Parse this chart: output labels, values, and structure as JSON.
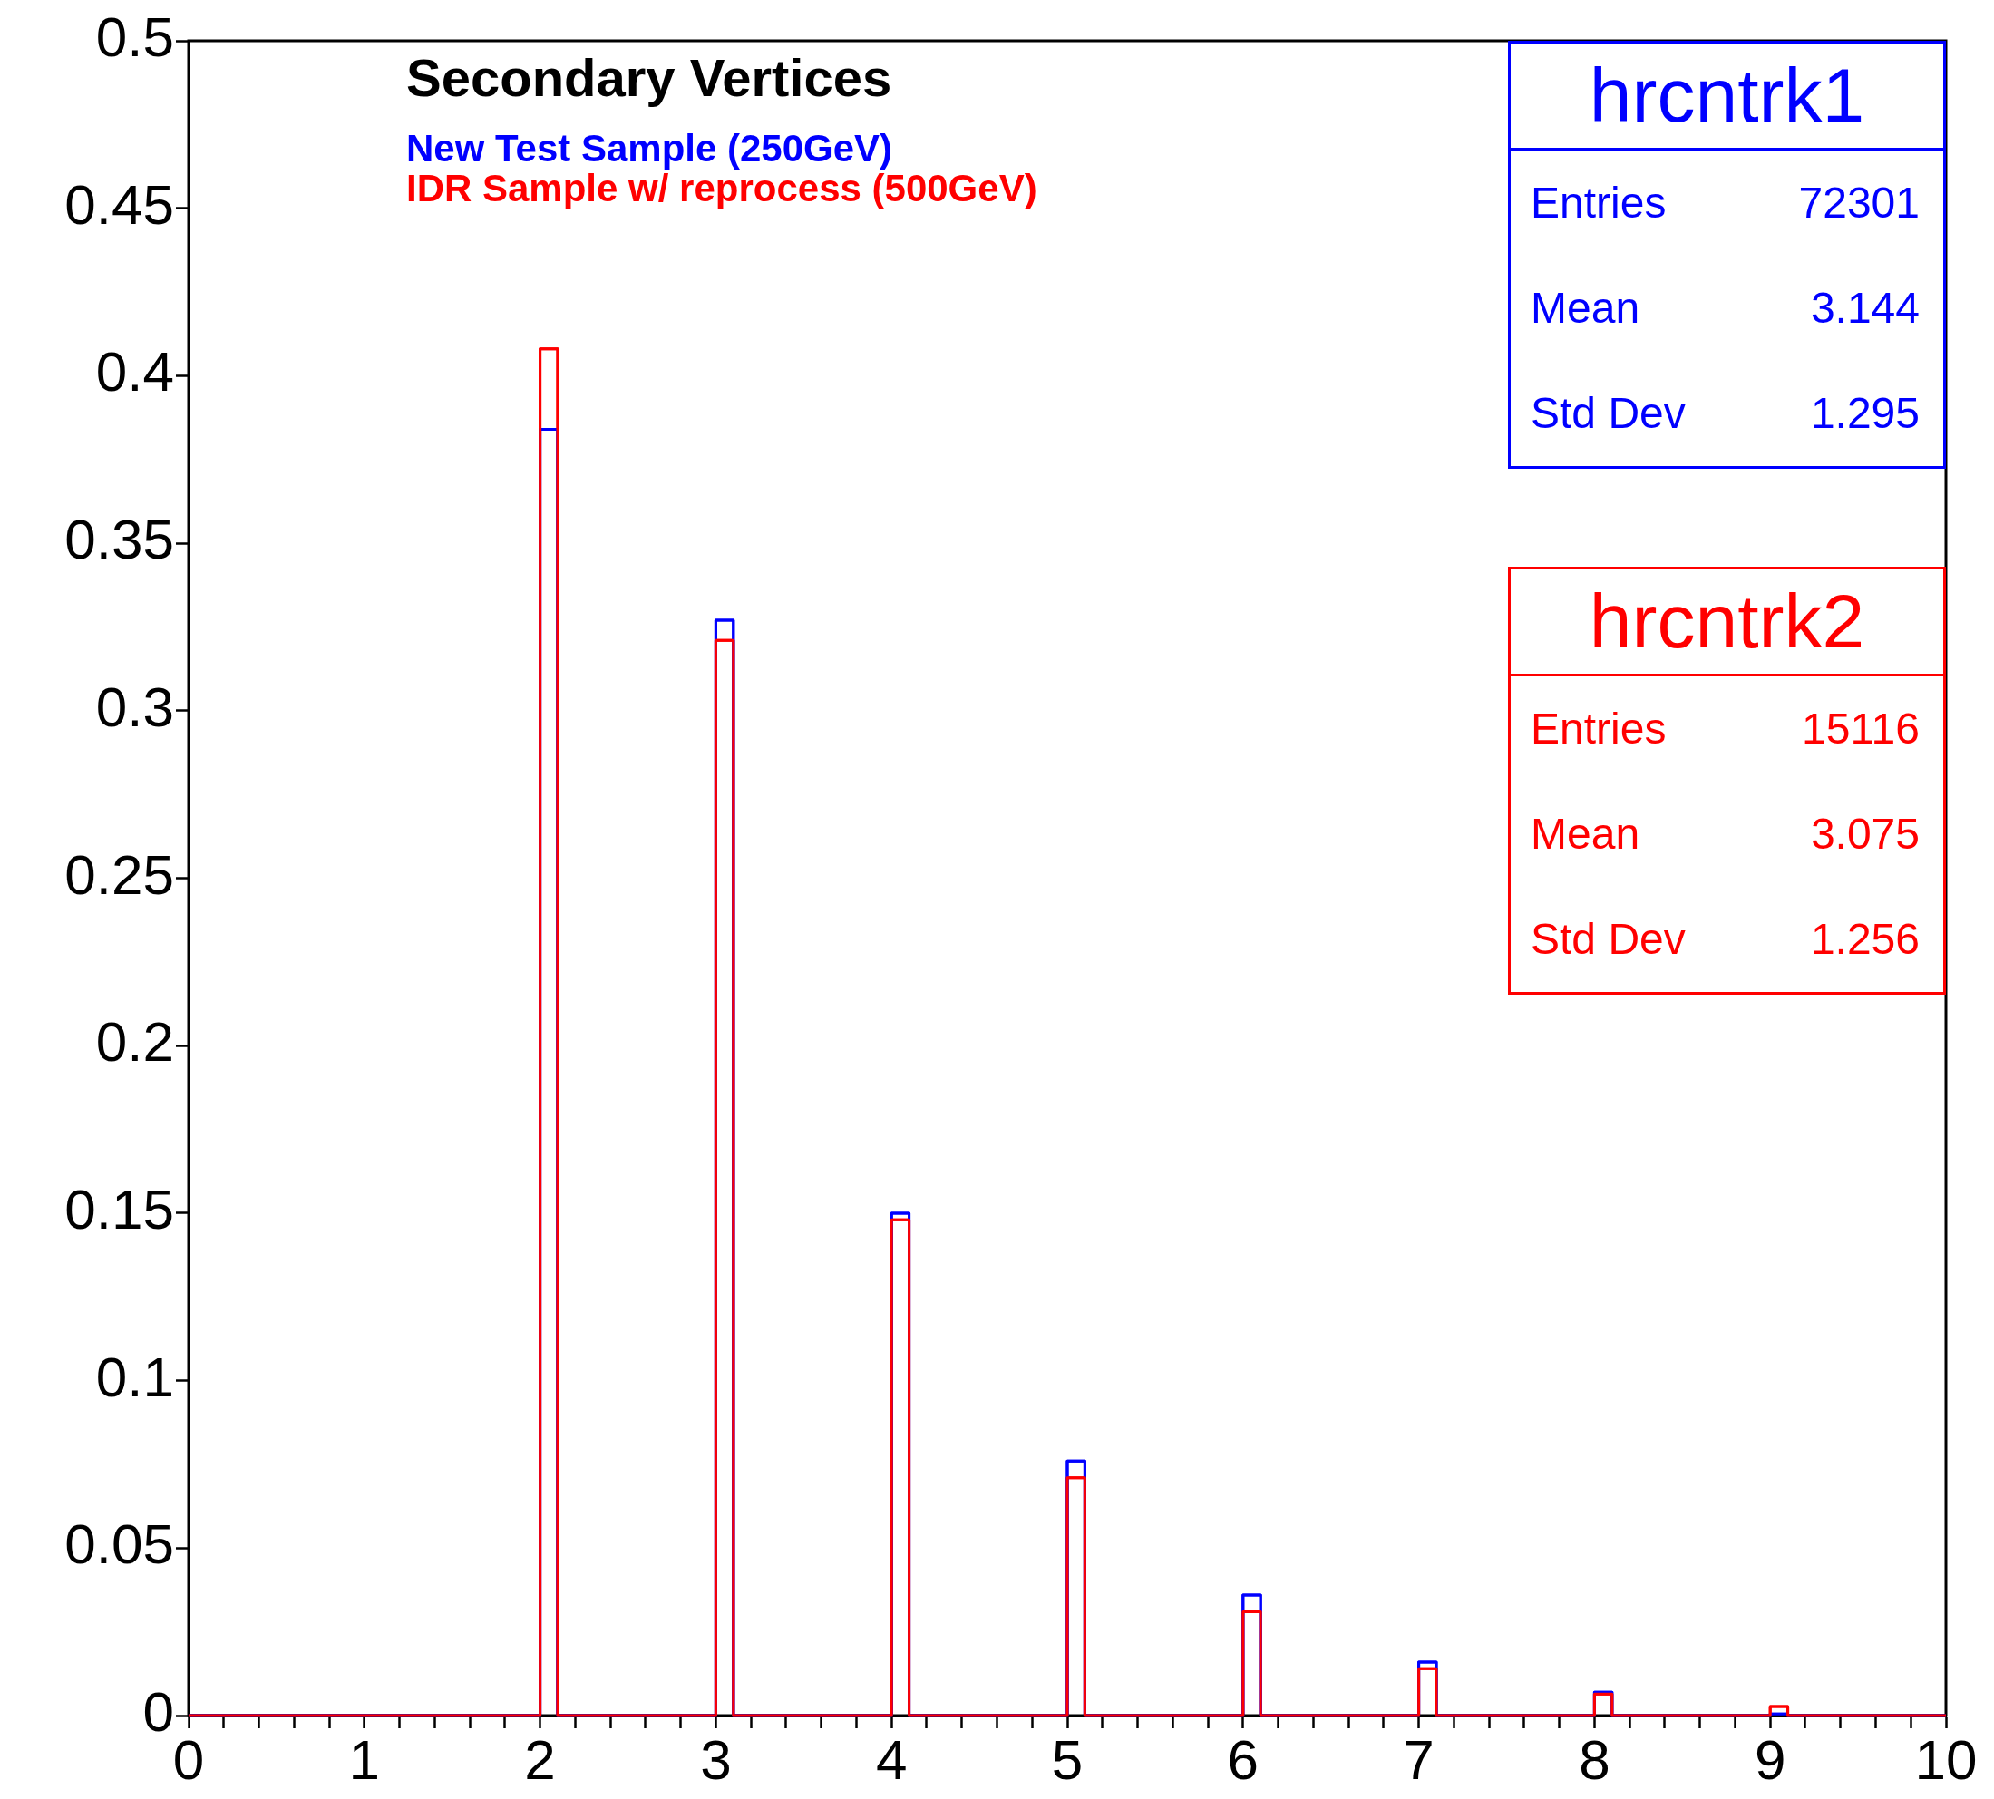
{
  "chart_data": {
    "type": "histogram",
    "title": "Secondary Vertices",
    "bins": [
      0,
      2,
      2.1,
      3,
      3.1,
      4,
      4.1,
      5,
      5.1,
      6,
      6.1,
      7,
      7.1,
      8,
      8.1,
      9,
      9.1,
      10
    ],
    "series": [
      {
        "name": "New Test Sample (250GeV)",
        "color": "#0000ff",
        "values": [
          0,
          0.384,
          0,
          0.327,
          0,
          0.15,
          0,
          0.076,
          0,
          0.036,
          0,
          0.016,
          0,
          0.007,
          0,
          0.0005,
          0
        ]
      },
      {
        "name": "IDR Sample w/ reprocess (500GeV)",
        "color": "#ff0000",
        "values": [
          0,
          0.408,
          0,
          0.321,
          0,
          0.148,
          0,
          0.071,
          0,
          0.031,
          0,
          0.014,
          0,
          0.0064,
          0,
          0.0027,
          0
        ]
      }
    ],
    "xlim": [
      0,
      10
    ],
    "xticks": [
      0,
      {
        "value": 0.2,
        "label": null
      },
      {
        "value": 0.4,
        "label": null
      },
      {
        "value": 0.6,
        "label": null
      },
      {
        "value": 0.8,
        "label": null
      },
      1,
      {
        "value": 1.2,
        "label": null
      },
      {
        "value": 1.4,
        "label": null
      },
      {
        "value": 1.6,
        "label": null
      },
      {
        "value": 1.8,
        "label": null
      },
      2,
      {
        "value": 2.2,
        "label": null
      },
      {
        "value": 2.4,
        "label": null
      },
      {
        "value": 2.6,
        "label": null
      },
      {
        "value": 2.8,
        "label": null
      },
      3,
      {
        "value": 3.2,
        "label": null
      },
      {
        "value": 3.4,
        "label": null
      },
      {
        "value": 3.6,
        "label": null
      },
      {
        "value": 3.8,
        "label": null
      },
      4,
      {
        "value": 4.2,
        "label": null
      },
      {
        "value": 4.4,
        "label": null
      },
      {
        "value": 4.6,
        "label": null
      },
      {
        "value": 4.8,
        "label": null
      },
      5,
      {
        "value": 5.2,
        "label": null
      },
      {
        "value": 5.4,
        "label": null
      },
      {
        "value": 5.6,
        "label": null
      },
      {
        "value": 5.8,
        "label": null
      },
      6,
      {
        "value": 6.2,
        "label": null
      },
      {
        "value": 6.4,
        "label": null
      },
      {
        "value": 6.6,
        "label": null
      },
      {
        "value": 6.8,
        "label": null
      },
      7,
      {
        "value": 7.2,
        "label": null
      },
      {
        "value": 7.4,
        "label": null
      },
      {
        "value": 7.6,
        "label": null
      },
      {
        "value": 7.8,
        "label": null
      },
      8,
      {
        "value": 8.2,
        "label": null
      },
      {
        "value": 8.4,
        "label": null
      },
      {
        "value": 8.6,
        "label": null
      },
      {
        "value": 8.8,
        "label": null
      },
      9,
      {
        "value": 9.2,
        "label": null
      },
      {
        "value": 9.4,
        "label": null
      },
      {
        "value": 9.6,
        "label": null
      },
      {
        "value": 9.8,
        "label": null
      },
      10
    ],
    "ylim": [
      0,
      0.5
    ],
    "yticks": [
      0,
      0.05,
      0.1,
      0.15,
      0.2,
      0.25,
      0.3,
      0.35,
      0.4,
      0.45,
      0.5
    ],
    "legend": "top left",
    "grid": false,
    "annotations": [
      "hrcntrk1",
      "Entries",
      "72301",
      "Mean",
      "3.144",
      "Std Dev",
      "1.295",
      "hrcntrk2",
      "Entries",
      "15116",
      "Mean",
      "3.075",
      "Std Dev",
      "1.256"
    ]
  }
}
